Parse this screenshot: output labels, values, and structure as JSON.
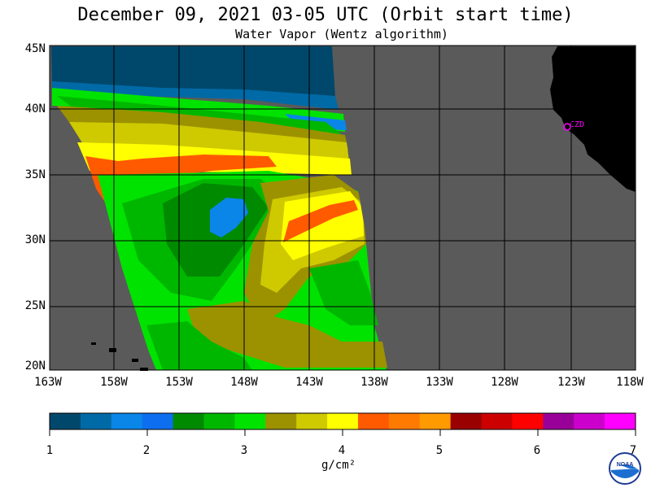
{
  "title": "December 09, 2021  03-05 UTC  (Orbit start time)",
  "subtitle": "Water Vapor (Wentz algorithm)",
  "lat_labels": [
    "45N",
    "40N",
    "35N",
    "30N",
    "25N",
    "20N"
  ],
  "lon_labels": [
    "163W",
    "158W",
    "153W",
    "148W",
    "143W",
    "138W",
    "133W",
    "128W",
    "123W",
    "118W"
  ],
  "station_label": "CZD",
  "colorbar": {
    "tick_labels": [
      "1",
      "2",
      "3",
      "4",
      "5",
      "6",
      "7"
    ],
    "units": "g/cm²",
    "colors": [
      "#00486b",
      "#006aa6",
      "#0a86e8",
      "#0d6ff0",
      "#008a00",
      "#00b700",
      "#00e300",
      "#9c9200",
      "#cfc900",
      "#ffff00",
      "#ff5a00",
      "#ff7a00",
      "#ff9a00",
      "#990000",
      "#cc0000",
      "#ff0000",
      "#990099",
      "#cc00cc",
      "#ff00ff"
    ]
  },
  "map_colors": {
    "ocean_nodata": "#5a5a5a",
    "land": "#000000",
    "grid": "#000000",
    "station": "#ff00ff"
  },
  "logo_text": "NOAA"
}
